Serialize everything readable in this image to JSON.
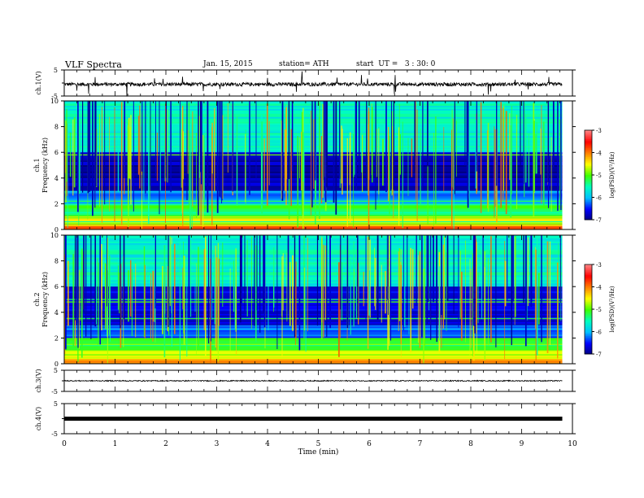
{
  "header": {
    "title": "VLF Spectra",
    "date": "Jan. 15, 2015",
    "station": "station= ATH",
    "start": "start  UT =   3 : 30: 0"
  },
  "colors": {
    "plot_border": "#000000",
    "colormap": [
      "#00007f",
      "#0000ff",
      "#00bfff",
      "#00ffbf",
      "#40ff00",
      "#ffff00",
      "#ff8000",
      "#ff0000",
      "#ff8080"
    ]
  },
  "chart_data": [
    {
      "type": "line",
      "panel": "ch1",
      "ylabel": "ch.1(V)",
      "yticks": [
        "5",
        "-5"
      ],
      "ylim": [
        -5,
        5
      ],
      "x_range": [
        0,
        9.8
      ],
      "baseline": -0.5,
      "description_values": "continuous waveform near 0 V with small spikes"
    },
    {
      "type": "heatmap",
      "panel": "spec1",
      "ylabel": "ch.1\nFrequency (kHz)",
      "ylabel_lines": [
        "ch.1",
        "Frequency (kHz)"
      ],
      "yticks": [
        "10",
        "8",
        "6",
        "4",
        "2",
        "0"
      ],
      "ylim": [
        0,
        10
      ],
      "colorbar": {
        "label": "log(PSD)(V²/Hz)",
        "ticks": [
          "-3",
          "-4",
          "-5",
          "-6",
          "-7"
        ],
        "range": [
          -7,
          -3
        ]
      }
    },
    {
      "type": "heatmap",
      "panel": "spec2",
      "ylabel_lines": [
        "ch.2",
        "Frequency (kHz)"
      ],
      "yticks": [
        "10",
        "8",
        "6",
        "4",
        "2",
        "0"
      ],
      "ylim": [
        0,
        10
      ],
      "colorbar": {
        "label": "log(PSD)(V²/Hz)",
        "ticks": [
          "-3",
          "-4",
          "-5",
          "-6",
          "-7"
        ],
        "range": [
          -7,
          -3
        ]
      }
    },
    {
      "type": "line",
      "panel": "ch3",
      "ylabel": "ch.3(V)",
      "yticks": [
        "5",
        "-5"
      ],
      "ylim": [
        -5,
        5
      ],
      "baseline": 0
    },
    {
      "type": "line",
      "panel": "ch4",
      "ylabel": "ch.4(V)",
      "yticks": [
        "5",
        "-5"
      ],
      "ylim": [
        -5,
        5
      ],
      "baseline": 0
    },
    {
      "type": "axis",
      "panel": "time",
      "xlabel": "Time  (min)",
      "xticks": [
        "0",
        "1",
        "2",
        "3",
        "4",
        "5",
        "6",
        "7",
        "8",
        "9",
        "10"
      ],
      "xlim": [
        0,
        10
      ],
      "data_end_min": 9.8
    }
  ]
}
